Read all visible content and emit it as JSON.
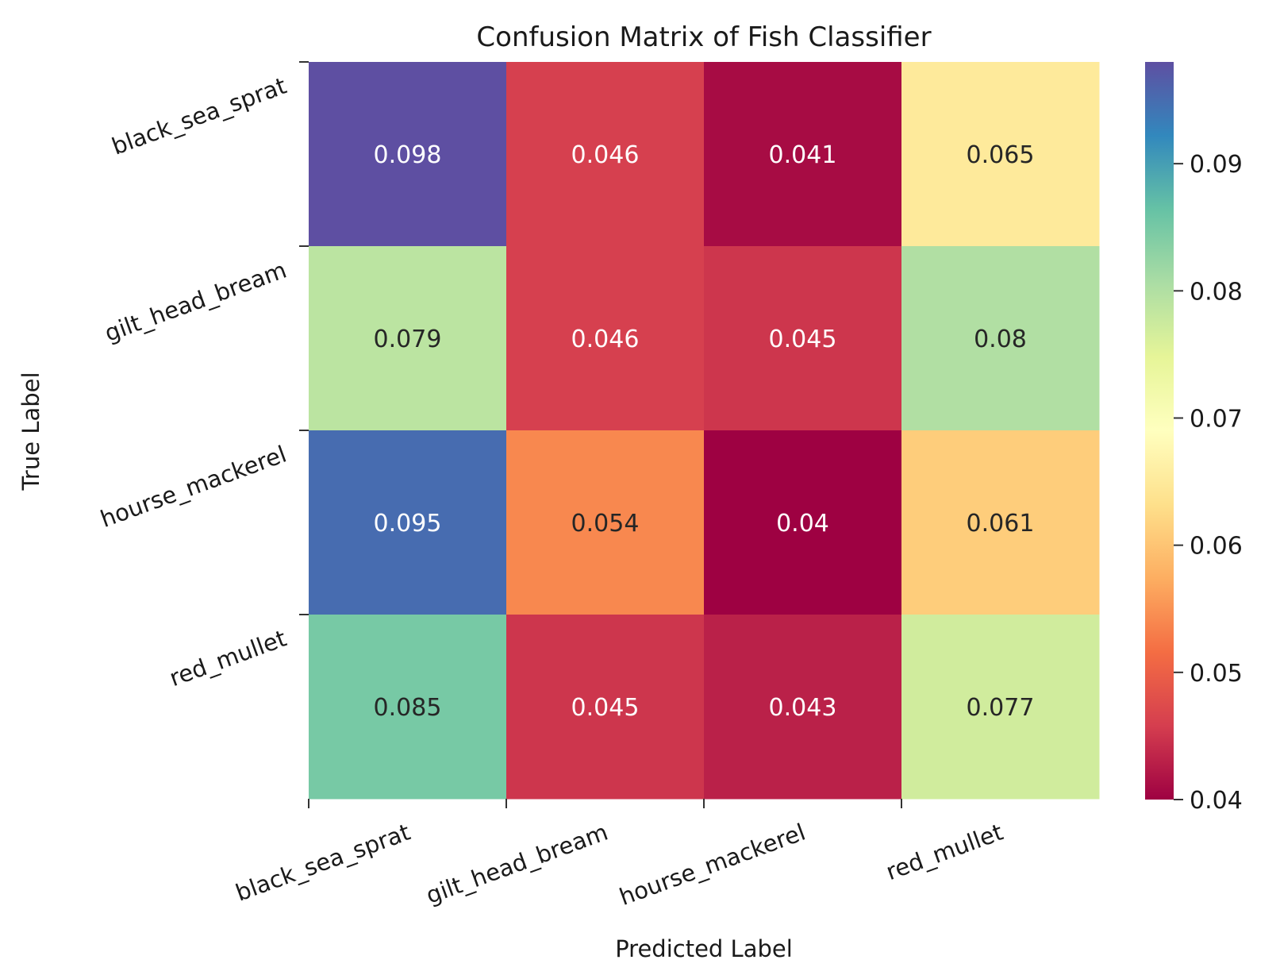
{
  "chart_data": {
    "type": "heatmap",
    "title": "Confusion Matrix of Fish Classifier",
    "xlabel": "Predicted Label",
    "ylabel": "True Label",
    "x_categories": [
      "black_sea_sprat",
      "gilt_head_bream",
      "hourse_mackerel",
      "red_mullet"
    ],
    "y_categories": [
      "black_sea_sprat",
      "gilt_head_bream",
      "hourse_mackerel",
      "red_mullet"
    ],
    "values": [
      [
        0.098,
        0.046,
        0.041,
        0.065
      ],
      [
        0.079,
        0.046,
        0.045,
        0.08
      ],
      [
        0.095,
        0.054,
        0.04,
        0.061
      ],
      [
        0.085,
        0.045,
        0.043,
        0.077
      ]
    ],
    "cell_labels": [
      [
        "0.098",
        "0.046",
        "0.041",
        "0.065"
      ],
      [
        "0.079",
        "0.046",
        "0.045",
        "0.08"
      ],
      [
        "0.095",
        "0.054",
        "0.04",
        "0.061"
      ],
      [
        "0.085",
        "0.045",
        "0.043",
        "0.077"
      ]
    ],
    "colorbar": {
      "colormap": "Spectral",
      "range": [
        0.04,
        0.098
      ],
      "ticks": [
        0.04,
        0.05,
        0.06,
        0.07,
        0.08,
        0.09
      ],
      "tick_labels": [
        "0.04",
        "0.05",
        "0.06",
        "0.07",
        "0.08",
        "0.09"
      ]
    },
    "colormap_stops": [
      "#9e0142",
      "#d53e4f",
      "#f46d43",
      "#fdae61",
      "#fee08b",
      "#ffffbf",
      "#e6f598",
      "#abdda4",
      "#66c2a5",
      "#3288bd",
      "#5e4fa2"
    ],
    "grid": false,
    "legend": "colorbar-right"
  }
}
